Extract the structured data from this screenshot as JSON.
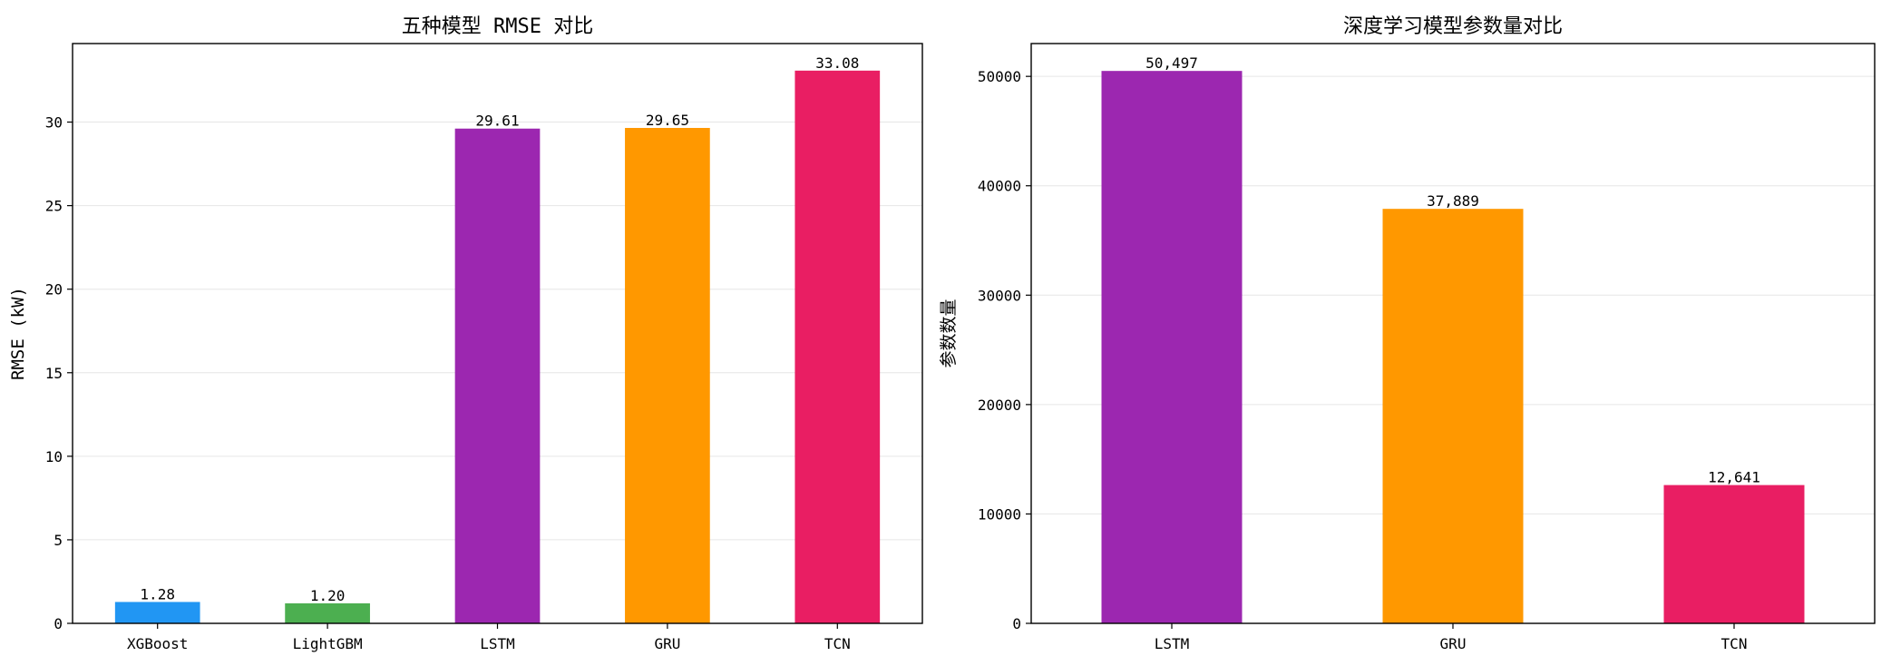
{
  "figure": {
    "background": "#ffffff"
  },
  "chart_data": [
    {
      "type": "bar",
      "title": "五种模型 RMSE 对比",
      "xlabel": "",
      "ylabel": "RMSE (kW)",
      "categories": [
        "XGBoost",
        "LightGBM",
        "LSTM",
        "GRU",
        "TCN"
      ],
      "values": [
        1.28,
        1.2,
        29.61,
        29.65,
        33.08
      ],
      "data_labels": [
        "1.28",
        "1.20",
        "29.61",
        "29.65",
        "33.08"
      ],
      "colors": [
        "#2196F3",
        "#4CAF50",
        "#9C27B0",
        "#FF9800",
        "#E91E63"
      ],
      "ylim": [
        0,
        34.7
      ],
      "yticks": [
        0,
        5,
        10,
        15,
        20,
        25,
        30
      ],
      "grid": "y-axis horizontal lines"
    },
    {
      "type": "bar",
      "title": "深度学习模型参数量对比",
      "xlabel": "",
      "ylabel": "参数数量",
      "categories": [
        "LSTM",
        "GRU",
        "TCN"
      ],
      "values": [
        50497,
        37889,
        12641
      ],
      "data_labels": [
        "50,497",
        "37,889",
        "12,641"
      ],
      "colors": [
        "#9C27B0",
        "#FF9800",
        "#E91E63"
      ],
      "ylim": [
        0,
        53000
      ],
      "yticks": [
        0,
        10000,
        20000,
        30000,
        40000,
        50000
      ],
      "grid": "y-axis horizontal lines"
    }
  ]
}
